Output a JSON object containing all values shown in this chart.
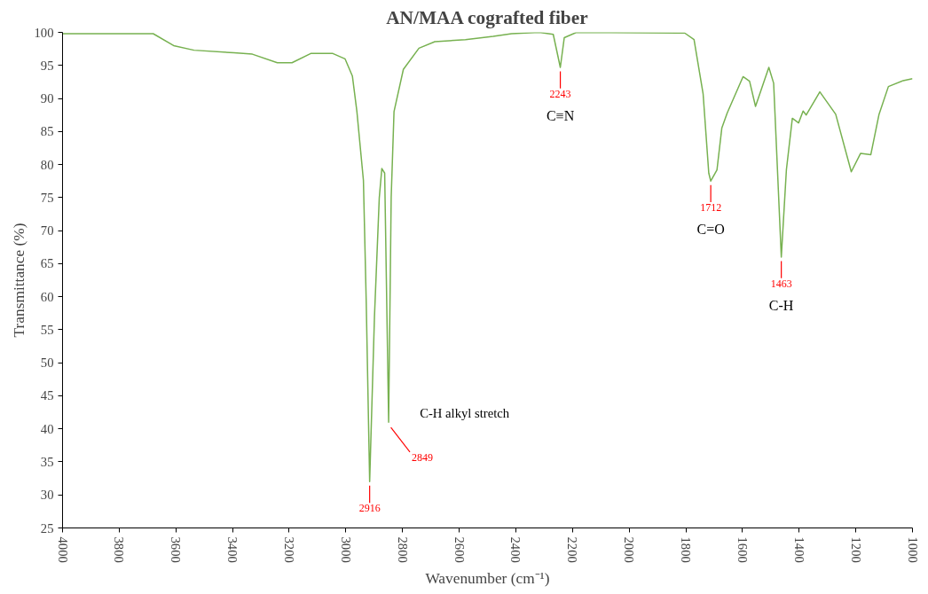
{
  "chart_data": {
    "type": "line",
    "title": "AN/MAA cografted fiber",
    "xlabel": "Wavenumber (cm⁻¹)",
    "ylabel": "Transmittance (%)",
    "x": [
      4000,
      3680,
      3608,
      3536,
      3395,
      3330,
      3242,
      3190,
      3124,
      3046,
      3003,
      2977,
      2961,
      2938,
      2928,
      2916,
      2899,
      2882,
      2873,
      2863,
      2849,
      2840,
      2830,
      2797,
      2742,
      2686,
      2578,
      2480,
      2415,
      2317,
      2268,
      2243,
      2229,
      2186,
      1804,
      1771,
      1739,
      1719,
      1712,
      1690,
      1673,
      1654,
      1598,
      1575,
      1554,
      1507,
      1490,
      1463,
      1445,
      1424,
      1402,
      1386,
      1375,
      1327,
      1271,
      1216,
      1183,
      1147,
      1118,
      1085,
      1033,
      1000
    ],
    "series": [
      {
        "color": "#77b150",
        "values": [
          99.8,
          99.8,
          98,
          97.3,
          96.9,
          96.7,
          95.4,
          95.4,
          96.8,
          96.8,
          96,
          93.4,
          88,
          77.6,
          59,
          32,
          57,
          75,
          79.4,
          78.7,
          41,
          75,
          88,
          94.4,
          97.6,
          98.6,
          98.9,
          99.4,
          99.8,
          100,
          99.7,
          94.7,
          99.2,
          100,
          99.9,
          98.9,
          90.7,
          78.7,
          77.5,
          79.2,
          85.5,
          87.8,
          93.3,
          92.6,
          88.8,
          94.7,
          92.3,
          66,
          79.2,
          87,
          86.3,
          88.1,
          87.5,
          91,
          87.6,
          78.9,
          81.7,
          81.5,
          87.6,
          91.8,
          92.7,
          93
        ]
      }
    ],
    "xlim": [
      4000,
      1000
    ],
    "xticks": [
      4000,
      3800,
      3600,
      3400,
      3200,
      3000,
      2800,
      2600,
      2400,
      2200,
      2000,
      1800,
      1600,
      1400,
      1200,
      1000
    ],
    "ylim": [
      25,
      100
    ],
    "yticks": [
      25,
      30,
      35,
      40,
      45,
      50,
      55,
      60,
      65,
      70,
      75,
      80,
      85,
      90,
      95,
      100
    ],
    "grid": false,
    "line_style": "solid",
    "annotations": [
      {
        "text": "2916",
        "x": 2916,
        "y": 32
      },
      {
        "text": "2849",
        "x": 2849,
        "y": 41
      },
      {
        "text": "C-H alkyl stretch",
        "x": 2849,
        "y": 41
      },
      {
        "text": "2243",
        "x": 2243,
        "y": 94.7
      },
      {
        "text": "C≡N",
        "x": 2243,
        "y": 94.7
      },
      {
        "text": "1712",
        "x": 1712,
        "y": 77.5
      },
      {
        "text": "C=O",
        "x": 1712,
        "y": 77.5
      },
      {
        "text": "1463",
        "x": 1463,
        "y": 66
      },
      {
        "text": "C-H",
        "x": 1463,
        "y": 66
      }
    ]
  }
}
